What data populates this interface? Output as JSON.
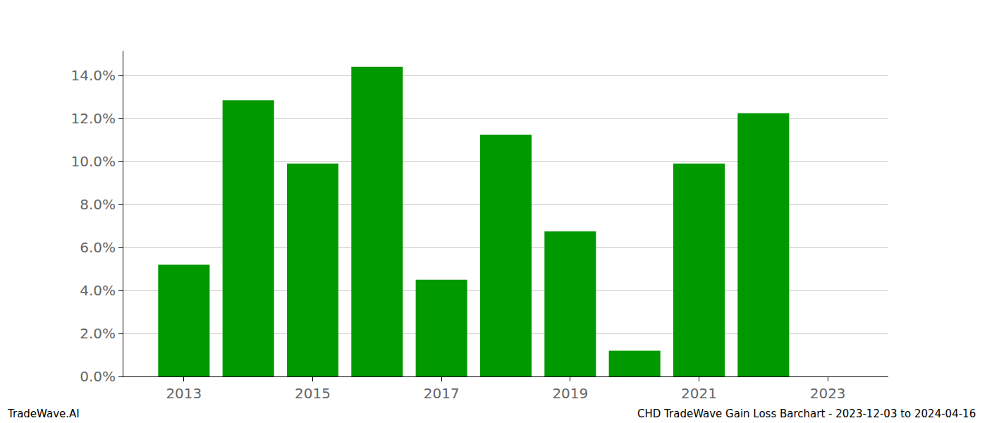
{
  "chart_data": {
    "type": "bar",
    "x": [
      2013,
      2014,
      2015,
      2016,
      2017,
      2018,
      2019,
      2020,
      2021,
      2022,
      2023
    ],
    "values": [
      5.2,
      12.85,
      9.9,
      14.4,
      4.5,
      11.25,
      6.75,
      1.2,
      9.9,
      12.25,
      0
    ],
    "color": "#009900",
    "xlim": [
      2012.06,
      2023.94
    ],
    "xticks": [
      2013,
      2015,
      2017,
      2019,
      2021,
      2023
    ],
    "ylim": [
      0,
      15.15
    ],
    "yticks": [
      {
        "value": 0,
        "label": "0.0%"
      },
      {
        "value": 2,
        "label": "2.0%"
      },
      {
        "value": 4,
        "label": "4.0%"
      },
      {
        "value": 6,
        "label": "6.0%"
      },
      {
        "value": 8,
        "label": "8.0%"
      },
      {
        "value": 10,
        "label": "10.0%"
      },
      {
        "value": 12,
        "label": "12.0%"
      },
      {
        "value": 14,
        "label": "14.0%"
      }
    ],
    "grid": true,
    "data_labels": false,
    "annotations": [
      {
        "text": "TradeWave.AI"
      },
      {
        "text": "CHD TradeWave Gain Loss Barchart - 2023-12-03 to 2024-04-16"
      }
    ]
  }
}
